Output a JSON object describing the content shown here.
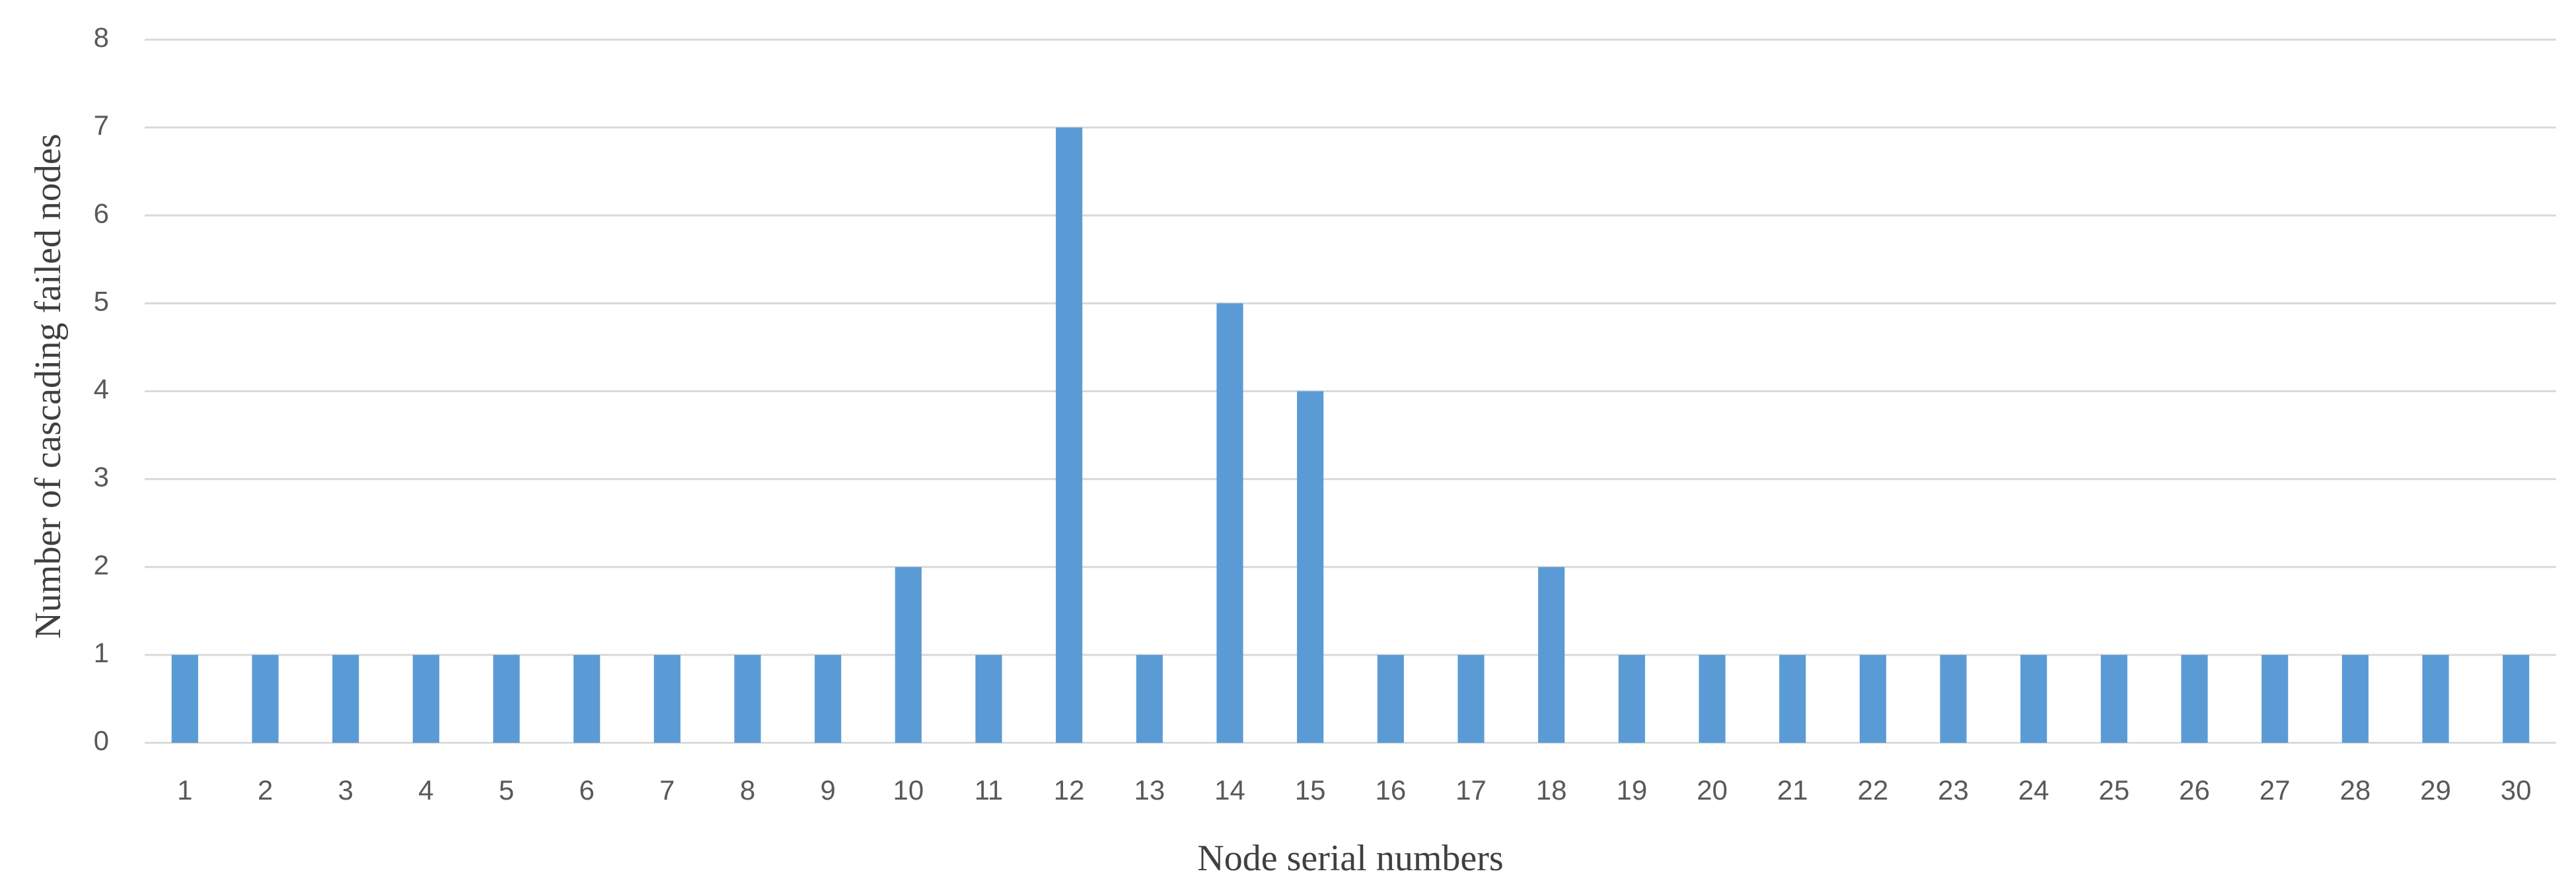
{
  "chart_data": {
    "type": "bar",
    "x_label": "Node serial numbers",
    "y_label": "Number of cascading failed nodes",
    "categories": [
      "1",
      "2",
      "3",
      "4",
      "5",
      "6",
      "7",
      "8",
      "9",
      "10",
      "11",
      "12",
      "13",
      "14",
      "15",
      "16",
      "17",
      "18",
      "19",
      "20",
      "21",
      "22",
      "23",
      "24",
      "25",
      "26",
      "27",
      "28",
      "29",
      "30"
    ],
    "values": [
      1,
      1,
      1,
      1,
      1,
      1,
      1,
      1,
      1,
      2,
      1,
      7,
      1,
      5,
      4,
      1,
      1,
      2,
      1,
      1,
      1,
      1,
      1,
      1,
      1,
      1,
      1,
      1,
      1,
      1
    ],
    "color": "#5b9bd5",
    "ylim": [
      0,
      8
    ],
    "yticks": [
      0,
      1,
      2,
      3,
      4,
      5,
      6,
      7,
      8
    ],
    "grid": true
  }
}
